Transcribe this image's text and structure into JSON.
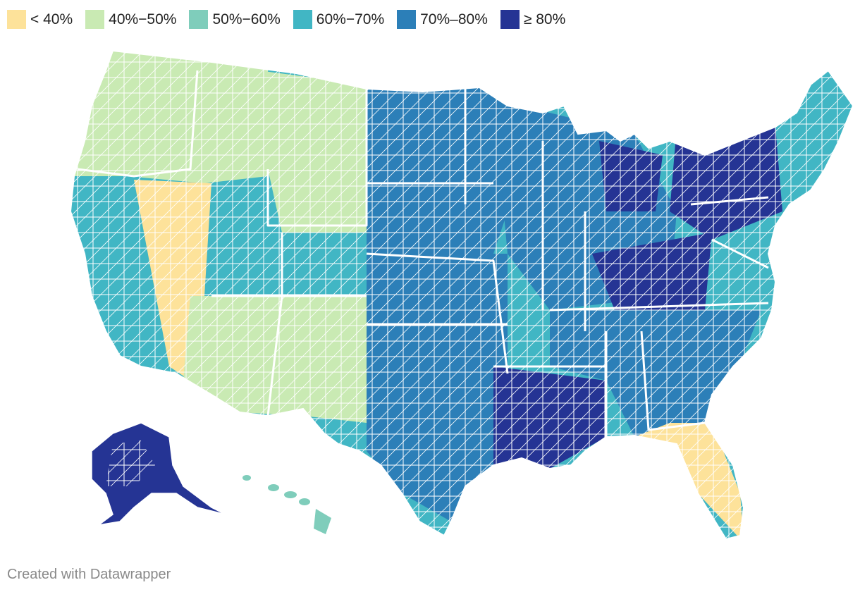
{
  "legend": {
    "items": [
      {
        "label": "< 40%",
        "color": "#fde29a"
      },
      {
        "label": "40%−50%",
        "color": "#c9eab3"
      },
      {
        "label": "50%−60%",
        "color": "#7fcdbb"
      },
      {
        "label": "60%−70%",
        "color": "#41b6c4"
      },
      {
        "label": "70%–80%",
        "color": "#2c7fb8"
      },
      {
        "label": "≥ 80%",
        "color": "#253494"
      }
    ]
  },
  "map": {
    "regions": [
      {
        "name": "pacific-northwest",
        "class": 1
      },
      {
        "name": "california",
        "class": 3
      },
      {
        "name": "great-basin",
        "class": 0
      },
      {
        "name": "northern-rockies",
        "class": 1
      },
      {
        "name": "southwest",
        "class": 1
      },
      {
        "name": "northern-plains",
        "class": 4
      },
      {
        "name": "southern-plains",
        "class": 4
      },
      {
        "name": "midwest",
        "class": 4
      },
      {
        "name": "gulf-coast",
        "class": 5
      },
      {
        "name": "appalachia",
        "class": 5
      },
      {
        "name": "southeast",
        "class": 4
      },
      {
        "name": "florida",
        "class": 0
      },
      {
        "name": "northeast",
        "class": 3
      },
      {
        "name": "new-york-pennsylvania",
        "class": 5
      },
      {
        "name": "michigan",
        "class": 5
      },
      {
        "name": "alaska",
        "class": 5
      },
      {
        "name": "hawaii",
        "class": 2
      }
    ]
  },
  "footer": {
    "credit": "Created with Datawrapper"
  }
}
